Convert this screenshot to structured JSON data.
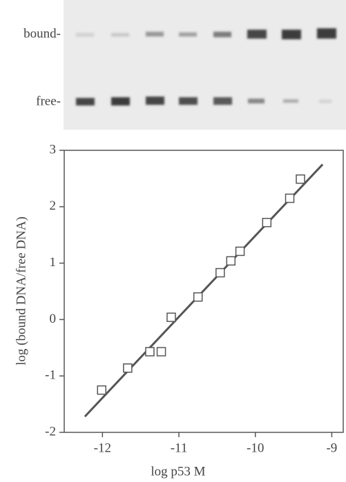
{
  "gel_labels": [
    "bound-",
    "free-"
  ],
  "chart_data": {
    "type": "scatter",
    "x_label": "log p53 M",
    "y_label": "log (bound DNA/free DNA)",
    "series": [
      {
        "color": "#555555",
        "x": [
          -12.01,
          -11.67,
          -11.38,
          -11.23,
          -11.1,
          -10.75,
          -10.46,
          -10.32,
          -10.2,
          -9.85,
          -9.55,
          -9.41
        ],
        "values": [
          -1.25,
          -0.86,
          -0.57,
          -0.57,
          0.04,
          0.4,
          0.83,
          1.04,
          1.21,
          1.72,
          2.15,
          2.49
        ]
      }
    ],
    "fit_line": {
      "color": "#555555",
      "x": [
        -12.23,
        -9.12
      ],
      "y": [
        -1.72,
        2.75
      ]
    },
    "xlim": [
      -12.5,
      -8.85
    ],
    "ylim": [
      -2,
      3
    ],
    "xticks": [
      -12,
      -11,
      -10,
      -9
    ],
    "yticks": [
      -2,
      -1,
      0,
      1,
      2,
      3
    ]
  }
}
